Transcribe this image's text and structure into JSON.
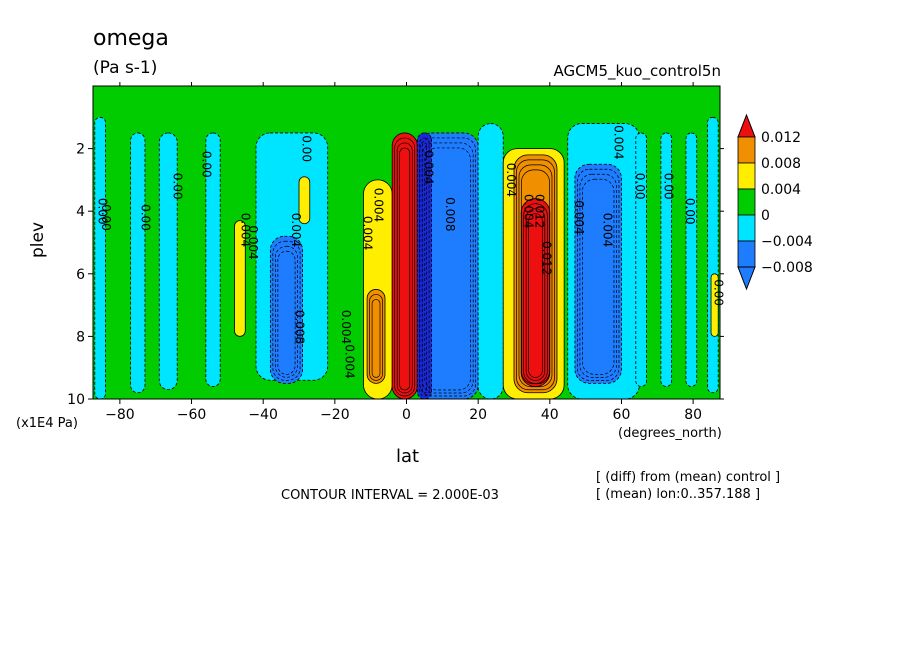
{
  "header": {
    "title": "omega",
    "units": "(Pa s-1)",
    "experiment": "AGCM5_kuo_control5n"
  },
  "axes": {
    "xlabel": "lat",
    "xunit": "(degrees_north)",
    "ylabel": "plev",
    "ymult": "(x1E4 Pa)"
  },
  "footer": {
    "contour_interval": "CONTOUR INTERVAL = 2.000E-03",
    "note1": "[ (diff) from (mean) control ]",
    "note2": "[ (mean) lon:0..357.188 ]"
  },
  "colors": {
    "red": "#ee1010",
    "orange": "#f09000",
    "yellow": "#ffee00",
    "green": "#00cc00",
    "cyan": "#00e5ff",
    "blue": "#1e7cff",
    "navy": "#1a2ad8"
  },
  "chart_data": {
    "type": "heatmap",
    "title": "omega",
    "subtitle": "(Pa s-1)",
    "xlabel": "lat",
    "ylabel": "plev",
    "xlim": [
      -87.5,
      87.5
    ],
    "ylim": [
      10,
      0
    ],
    "y_scale_factor": "x1E4 Pa",
    "x_ticks": [
      -80,
      -60,
      -40,
      -20,
      0,
      20,
      40,
      60,
      80
    ],
    "x_tick_labels": [
      "−80",
      "−60",
      "−40",
      "−20",
      "0",
      "20",
      "40",
      "60",
      "80"
    ],
    "y_ticks": [
      2,
      4,
      6,
      8,
      10
    ],
    "y_tick_labels": [
      "2",
      "4",
      "6",
      "8",
      "10"
    ],
    "colorbar": {
      "levels": [
        -0.008,
        -0.004,
        0,
        0.004,
        0.008,
        0.012
      ],
      "labels": [
        "−0.008",
        "−0.004",
        "0",
        "0.004",
        "0.008",
        "0.012"
      ],
      "colors": [
        "#1e7cff",
        "#00e5ff",
        "#00cc00",
        "#ffee00",
        "#f09000",
        "#ee1010"
      ]
    },
    "contour_interval": 0.002,
    "background_level": 0,
    "features": [
      {
        "name": "cyan-column",
        "level": -0.004,
        "lat": [
          -87,
          -84
        ],
        "plev": [
          1.0,
          10.0
        ]
      },
      {
        "name": "cyan-column",
        "level": -0.004,
        "lat": [
          -77,
          -73
        ],
        "plev": [
          1.5,
          9.8
        ]
      },
      {
        "name": "cyan-column",
        "level": -0.004,
        "lat": [
          -69,
          -64
        ],
        "plev": [
          1.5,
          9.7
        ]
      },
      {
        "name": "cyan-column",
        "level": -0.004,
        "lat": [
          -56,
          -52
        ],
        "plev": [
          1.5,
          9.6
        ]
      },
      {
        "name": "cyan-region",
        "level": -0.004,
        "lat": [
          -42,
          -22
        ],
        "plev": [
          1.5,
          9.4
        ]
      },
      {
        "name": "blue-core",
        "level": -0.008,
        "lat": [
          -38,
          -29
        ],
        "plev": [
          4.8,
          9.5
        ]
      },
      {
        "name": "yellow-column",
        "level": 0.004,
        "lat": [
          -48,
          -45
        ],
        "plev": [
          4.3,
          8.0
        ]
      },
      {
        "name": "yellow-column",
        "level": 0.004,
        "lat": [
          -30,
          -27
        ],
        "plev": [
          2.9,
          4.4
        ]
      },
      {
        "name": "yellow-region",
        "level": 0.004,
        "lat": [
          -12,
          -4
        ],
        "plev": [
          3.0,
          10.0
        ]
      },
      {
        "name": "orange-region",
        "level": 0.008,
        "lat": [
          -11,
          -6
        ],
        "plev": [
          6.5,
          9.5
        ]
      },
      {
        "name": "red-core",
        "level": 0.012,
        "lat": [
          -4,
          3
        ],
        "plev": [
          1.5,
          10.0
        ]
      },
      {
        "name": "blue-region",
        "level": -0.008,
        "lat": [
          3,
          20
        ],
        "plev": [
          1.5,
          10.0
        ]
      },
      {
        "name": "navy-core",
        "level": -0.012,
        "lat": [
          3,
          7
        ],
        "plev": [
          1.5,
          10.0
        ]
      },
      {
        "name": "cyan-column",
        "level": -0.004,
        "lat": [
          20,
          27
        ],
        "plev": [
          1.2,
          10.0
        ]
      },
      {
        "name": "yellow-region",
        "level": 0.004,
        "lat": [
          27,
          44
        ],
        "plev": [
          2.0,
          10.0
        ]
      },
      {
        "name": "orange-region",
        "level": 0.008,
        "lat": [
          30,
          42
        ],
        "plev": [
          2.2,
          9.8
        ]
      },
      {
        "name": "red-core",
        "level": 0.012,
        "lat": [
          32,
          40
        ],
        "plev": [
          3.6,
          9.6
        ]
      },
      {
        "name": "cyan-region",
        "level": -0.004,
        "lat": [
          45,
          65
        ],
        "plev": [
          1.2,
          10.0
        ]
      },
      {
        "name": "blue-core",
        "level": -0.008,
        "lat": [
          47,
          60
        ],
        "plev": [
          2.5,
          9.5
        ]
      },
      {
        "name": "cyan-column",
        "level": -0.004,
        "lat": [
          64,
          67
        ],
        "plev": [
          1.5,
          9.6
        ]
      },
      {
        "name": "cyan-column",
        "level": -0.004,
        "lat": [
          71,
          74
        ],
        "plev": [
          1.5,
          9.6
        ]
      },
      {
        "name": "cyan-column",
        "level": -0.004,
        "lat": [
          78,
          81
        ],
        "plev": [
          1.5,
          9.6
        ]
      },
      {
        "name": "cyan-column",
        "level": -0.004,
        "lat": [
          84,
          87
        ],
        "plev": [
          1.0,
          9.8
        ]
      },
      {
        "name": "yellow-column",
        "level": 0.004,
        "lat": [
          85,
          87
        ],
        "plev": [
          6.0,
          8.0
        ]
      }
    ],
    "contour_labels": [
      {
        "text": "0.00",
        "lat": -86,
        "plev": 4.0
      },
      {
        "text": "0.00",
        "lat": -85,
        "plev": 4.2
      },
      {
        "text": "0.00",
        "lat": -74,
        "plev": 4.2
      },
      {
        "text": "0.00",
        "lat": -65,
        "plev": 3.2
      },
      {
        "text": "0.00",
        "lat": -57,
        "plev": 2.5
      },
      {
        "text": "0.004",
        "lat": -46,
        "plev": 4.6
      },
      {
        "text": "0.004",
        "lat": -44,
        "plev": 5.0
      },
      {
        "text": "0.00",
        "lat": -29,
        "plev": 2.0
      },
      {
        "text": "0.004",
        "lat": -32,
        "plev": 4.6
      },
      {
        "text": "0.008",
        "lat": -31,
        "plev": 7.7
      },
      {
        "text": "0.004",
        "lat": -18,
        "plev": 7.7
      },
      {
        "text": "0.004",
        "lat": -17,
        "plev": 8.8
      },
      {
        "text": "0.004",
        "lat": -12,
        "plev": 4.7
      },
      {
        "text": "0.004",
        "lat": -9,
        "plev": 3.8
      },
      {
        "text": "0.004",
        "lat": 5,
        "plev": 2.6
      },
      {
        "text": "0.008",
        "lat": 11,
        "plev": 4.1
      },
      {
        "text": "0.004",
        "lat": 28,
        "plev": 3.0
      },
      {
        "text": "0.004",
        "lat": 33,
        "plev": 4.0
      },
      {
        "text": "0.012",
        "lat": 36,
        "plev": 4.0
      },
      {
        "text": "0.012",
        "lat": 38,
        "plev": 5.5
      },
      {
        "text": "0.004",
        "lat": 47,
        "plev": 4.2
      },
      {
        "text": "0.004",
        "lat": 58,
        "plev": 1.8
      },
      {
        "text": "0.004",
        "lat": 55,
        "plev": 4.6
      },
      {
        "text": "0.00",
        "lat": 64,
        "plev": 3.2
      },
      {
        "text": "0.00",
        "lat": 72,
        "plev": 3.2
      },
      {
        "text": "0.00",
        "lat": 78,
        "plev": 4.0
      },
      {
        "text": "0.00",
        "lat": 86,
        "plev": 6.6
      }
    ]
  }
}
